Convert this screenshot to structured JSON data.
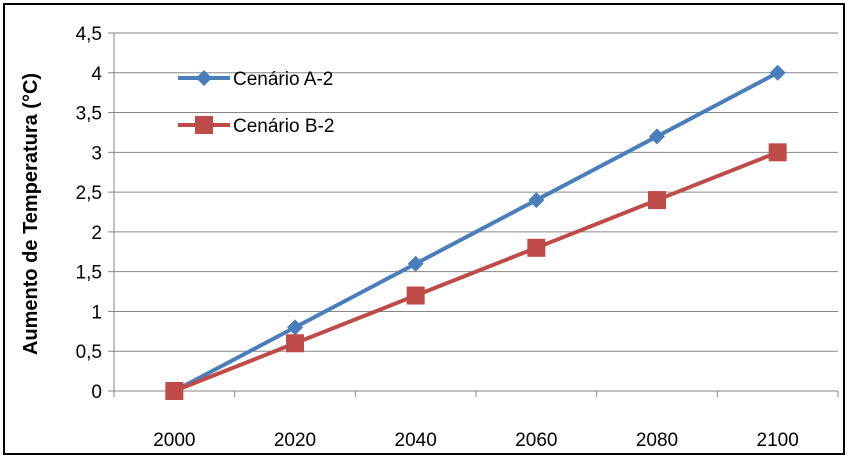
{
  "chart_data": {
    "type": "line",
    "title": "",
    "xlabel": "",
    "ylabel": "Aumento de Temperatura (°C)",
    "x": [
      2000,
      2020,
      2040,
      2060,
      2080,
      2100
    ],
    "ylim": [
      0,
      4.5
    ],
    "y_ticks": [
      "0",
      "0,5",
      "1",
      "1,5",
      "2",
      "2,5",
      "3",
      "3,5",
      "4",
      "4,5"
    ],
    "x_ticks": [
      "2000",
      "2020",
      "2040",
      "2060",
      "2080",
      "2100"
    ],
    "grid": "horizontal",
    "legend_position": "top-left",
    "series": [
      {
        "name": "Cenário A-2",
        "color": "#4a7ebb",
        "marker": "diamond",
        "values": [
          0,
          0.8,
          1.6,
          2.4,
          3.2,
          4.0
        ]
      },
      {
        "name": "Cenário B-2",
        "color": "#be4b48",
        "marker": "square",
        "values": [
          0,
          0.6,
          1.2,
          1.8,
          2.4,
          3.0
        ]
      }
    ]
  }
}
